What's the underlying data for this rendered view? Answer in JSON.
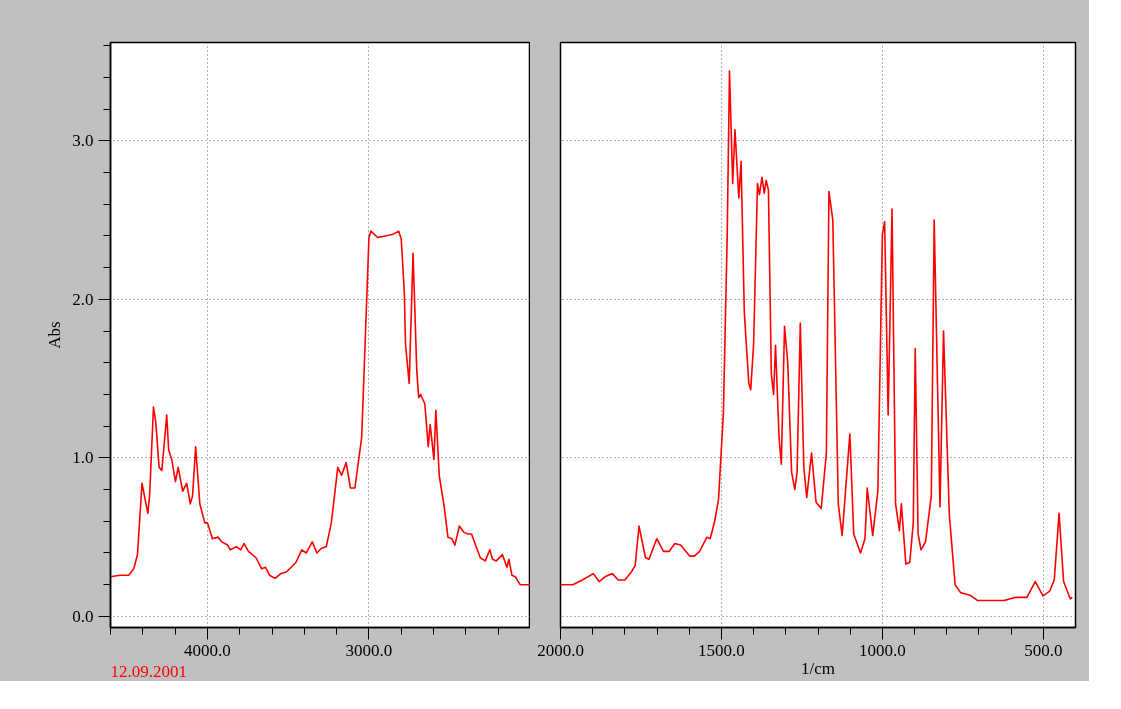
{
  "chart_data": [
    {
      "type": "line",
      "ylabel": "Abs",
      "annotations": [
        "12.09.2001"
      ],
      "xlim": [
        4600,
        2000
      ],
      "ylim": [
        -0.07,
        3.62
      ],
      "grid": true,
      "tick_labels": "xy",
      "xticks": [
        {
          "value": 4600,
          "label": null
        },
        {
          "value": 4400,
          "label": null
        },
        {
          "value": 4200,
          "label": null
        },
        {
          "value": 4000,
          "label": "4000.0"
        },
        {
          "value": 3800,
          "label": null
        },
        {
          "value": 3600,
          "label": null
        },
        {
          "value": 3400,
          "label": null
        },
        {
          "value": 3200,
          "label": null
        },
        {
          "value": 3000,
          "label": "3000.0"
        },
        {
          "value": 2800,
          "label": null
        },
        {
          "value": 2600,
          "label": null
        },
        {
          "value": 2400,
          "label": null
        },
        {
          "value": 2200,
          "label": null
        }
      ],
      "yticks": [
        {
          "value": 0,
          "label": "0.0"
        },
        {
          "value": 0.2,
          "label": null
        },
        {
          "value": 0.4,
          "label": null
        },
        {
          "value": 0.6,
          "label": null
        },
        {
          "value": 0.8,
          "label": null
        },
        {
          "value": 1,
          "label": "1.0"
        },
        {
          "value": 1.2,
          "label": null
        },
        {
          "value": 1.4,
          "label": null
        },
        {
          "value": 1.6,
          "label": null
        },
        {
          "value": 1.8,
          "label": null
        },
        {
          "value": 2,
          "label": "2.0"
        },
        {
          "value": 2.2,
          "label": null
        },
        {
          "value": 2.4,
          "label": null
        },
        {
          "value": 2.6,
          "label": null
        },
        {
          "value": 2.8,
          "label": null
        },
        {
          "value": 3,
          "label": "3.0"
        },
        {
          "value": 3.2,
          "label": null
        },
        {
          "value": 3.4,
          "label": null
        },
        {
          "value": 3.6,
          "label": null
        }
      ],
      "series": [
        {
          "color": "#ff0000",
          "x": [
            4600,
            4541,
            4487,
            4456,
            4433,
            4405,
            4369,
            4358,
            4334,
            4320,
            4299,
            4282,
            4252,
            4240,
            4221,
            4198,
            4181,
            4153,
            4129,
            4106,
            4092,
            4073,
            4047,
            4016,
            4000,
            3969,
            3934,
            3911,
            3875,
            3859,
            3821,
            3793,
            3774,
            3746,
            3699,
            3664,
            3640,
            3616,
            3581,
            3546,
            3511,
            3452,
            3416,
            3388,
            3351,
            3322,
            3294,
            3264,
            3233,
            3193,
            3169,
            3141,
            3115,
            3087,
            3045,
            3000,
            2988,
            2946,
            2899,
            2852,
            2816,
            2800,
            2781,
            2774,
            2751,
            2727,
            2704,
            2692,
            2680,
            2654,
            2633,
            2621,
            2598,
            2586,
            2565,
            2534,
            2511,
            2487,
            2468,
            2440,
            2412,
            2388,
            2365,
            2311,
            2280,
            2252,
            2235,
            2212,
            2174,
            2146,
            2134,
            2115,
            2094,
            2064,
            2000
          ],
          "values": [
            0.25,
            0.26,
            0.26,
            0.3,
            0.39,
            0.84,
            0.65,
            0.76,
            1.32,
            1.23,
            0.94,
            0.92,
            1.27,
            1.05,
            0.99,
            0.85,
            0.94,
            0.79,
            0.84,
            0.71,
            0.76,
            1.07,
            0.71,
            0.59,
            0.59,
            0.49,
            0.5,
            0.47,
            0.45,
            0.42,
            0.44,
            0.42,
            0.46,
            0.41,
            0.37,
            0.3,
            0.31,
            0.26,
            0.24,
            0.27,
            0.28,
            0.34,
            0.42,
            0.4,
            0.47,
            0.4,
            0.43,
            0.44,
            0.59,
            0.94,
            0.89,
            0.97,
            0.81,
            0.81,
            1.13,
            2.39,
            2.43,
            2.39,
            2.4,
            2.41,
            2.43,
            2.38,
            2.04,
            1.72,
            1.47,
            2.29,
            1.55,
            1.38,
            1.4,
            1.34,
            1.07,
            1.21,
            0.99,
            1.3,
            0.89,
            0.69,
            0.5,
            0.49,
            0.45,
            0.57,
            0.53,
            0.52,
            0.52,
            0.37,
            0.35,
            0.42,
            0.36,
            0.35,
            0.39,
            0.31,
            0.36,
            0.26,
            0.25,
            0.2,
            0.2
          ]
        }
      ]
    },
    {
      "type": "line",
      "xlabel": "1/cm",
      "xlim": [
        2000,
        400
      ],
      "ylim": [
        -0.07,
        3.62
      ],
      "grid": true,
      "tick_labels": "x",
      "xticks": [
        {
          "value": 2000,
          "label": "2000.0"
        },
        {
          "value": 1900,
          "label": null
        },
        {
          "value": 1800,
          "label": null
        },
        {
          "value": 1700,
          "label": null
        },
        {
          "value": 1600,
          "label": null
        },
        {
          "value": 1500,
          "label": "1500.0"
        },
        {
          "value": 1400,
          "label": null
        },
        {
          "value": 1300,
          "label": null
        },
        {
          "value": 1200,
          "label": null
        },
        {
          "value": 1100,
          "label": null
        },
        {
          "value": 1000,
          "label": "1000.0"
        },
        {
          "value": 900,
          "label": null
        },
        {
          "value": 800,
          "label": null
        },
        {
          "value": 700,
          "label": null
        },
        {
          "value": 600,
          "label": null
        },
        {
          "value": 500,
          "label": "500.0"
        }
      ],
      "yticks": [
        0,
        1,
        2,
        3
      ],
      "series": [
        {
          "color": "#ff0000",
          "x": [
            2000,
            1962,
            1932,
            1898,
            1880,
            1862,
            1839,
            1821,
            1800,
            1780,
            1768,
            1756,
            1736,
            1725,
            1701,
            1680,
            1662,
            1645,
            1627,
            1598,
            1584,
            1568,
            1545,
            1535,
            1521,
            1509,
            1494,
            1482,
            1475,
            1465,
            1458,
            1446,
            1439,
            1429,
            1415,
            1409,
            1400,
            1388,
            1382,
            1374,
            1367,
            1361,
            1354,
            1345,
            1338,
            1332,
            1321,
            1314,
            1304,
            1294,
            1282,
            1272,
            1265,
            1255,
            1244,
            1235,
            1220,
            1206,
            1190,
            1174,
            1166,
            1154,
            1137,
            1125,
            1101,
            1089,
            1068,
            1054,
            1047,
            1030,
            1014,
            1000,
            993,
            982,
            970,
            959,
            947,
            941,
            927,
            915,
            904,
            898,
            889,
            880,
            866,
            848,
            839,
            821,
            810,
            792,
            774,
            757,
            739,
            724,
            704,
            657,
            622,
            587,
            551,
            525,
            501,
            480,
            466,
            451,
            437,
            416,
            410
          ],
          "values": [
            0.2,
            0.2,
            0.23,
            0.27,
            0.22,
            0.25,
            0.27,
            0.23,
            0.23,
            0.28,
            0.32,
            0.57,
            0.37,
            0.36,
            0.49,
            0.41,
            0.41,
            0.46,
            0.45,
            0.38,
            0.38,
            0.41,
            0.5,
            0.49,
            0.6,
            0.74,
            1.28,
            2.41,
            3.44,
            2.73,
            3.07,
            2.64,
            2.87,
            1.92,
            1.47,
            1.43,
            1.72,
            2.73,
            2.66,
            2.77,
            2.67,
            2.75,
            2.69,
            1.53,
            1.4,
            1.71,
            1.13,
            0.96,
            1.83,
            1.6,
            0.91,
            0.8,
            0.91,
            1.85,
            0.94,
            0.75,
            1.03,
            0.72,
            0.68,
            1.03,
            2.68,
            2.5,
            0.71,
            0.51,
            1.15,
            0.52,
            0.4,
            0.49,
            0.81,
            0.51,
            0.79,
            2.41,
            2.49,
            1.27,
            2.57,
            0.71,
            0.54,
            0.71,
            0.33,
            0.34,
            0.59,
            1.69,
            0.52,
            0.42,
            0.47,
            0.76,
            2.5,
            0.69,
            1.8,
            0.64,
            0.2,
            0.15,
            0.14,
            0.13,
            0.1,
            0.1,
            0.1,
            0.12,
            0.12,
            0.22,
            0.13,
            0.16,
            0.23,
            0.65,
            0.22,
            0.11,
            0.12
          ]
        }
      ]
    }
  ]
}
